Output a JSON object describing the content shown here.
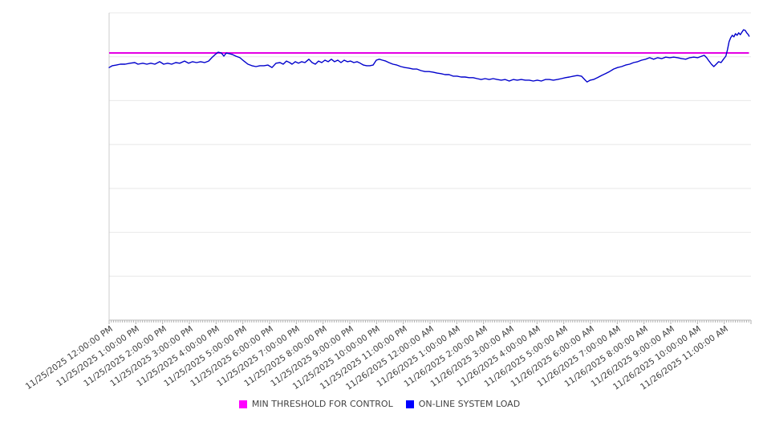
{
  "chart_data": {
    "type": "line",
    "title": "",
    "x_axis_label": "",
    "y_axis_label": "",
    "y_axis_ticks": "unlabeled",
    "y_range": [
      0,
      100
    ],
    "y_unit": "normalized (0-100 of plot height, no visible axis labels)",
    "x_range_hours": [
      0,
      24
    ],
    "grid_divisions": 7,
    "grid_on": true,
    "legend_position": "bottom-center",
    "x_labels": [
      "11/25/2025 12:00:00 PM",
      "11/25/2025 1:00:00 PM",
      "11/25/2025 2:00:00 PM",
      "11/25/2025 3:00:00 PM",
      "11/25/2025 4:00:00 PM",
      "11/25/2025 5:00:00 PM",
      "11/25/2025 6:00:00 PM",
      "11/25/2025 7:00:00 PM",
      "11/25/2025 8:00:00 PM",
      "11/25/2025 9:00:00 PM",
      "11/25/2025 10:00:00 PM",
      "11/25/2025 11:00:00 PM",
      "11/26/2025 12:00:00 AM",
      "11/26/2025 1:00:00 AM",
      "11/26/2025 2:00:00 AM",
      "11/26/2025 3:00:00 AM",
      "11/26/2025 4:00:00 AM",
      "11/26/2025 5:00:00 AM",
      "11/26/2025 6:00:00 AM",
      "11/26/2025 7:00:00 AM",
      "11/26/2025 8:00:00 AM",
      "11/26/2025 9:00:00 AM",
      "11/26/2025 10:00:00 AM",
      "11/26/2025 11:00:00 AM"
    ],
    "series": [
      {
        "name": "MIN THRESHOLD FOR CONTROL",
        "type": "threshold",
        "line_color": "#E400E4",
        "legend_color": "#FF00FF",
        "value": 86.9
      },
      {
        "name": "ON-LINE SYSTEM LOAD",
        "type": "line",
        "line_color": "#0000CC",
        "legend_color": "#0000FF",
        "points": [
          [
            0.0,
            82.2
          ],
          [
            0.12,
            82.8
          ],
          [
            0.27,
            83.0
          ],
          [
            0.42,
            83.3
          ],
          [
            0.6,
            83.3
          ],
          [
            0.78,
            83.6
          ],
          [
            0.96,
            83.8
          ],
          [
            1.08,
            83.3
          ],
          [
            1.26,
            83.6
          ],
          [
            1.41,
            83.3
          ],
          [
            1.56,
            83.6
          ],
          [
            1.71,
            83.3
          ],
          [
            1.89,
            84.1
          ],
          [
            2.04,
            83.3
          ],
          [
            2.19,
            83.6
          ],
          [
            2.34,
            83.3
          ],
          [
            2.49,
            83.8
          ],
          [
            2.64,
            83.6
          ],
          [
            2.82,
            84.3
          ],
          [
            2.97,
            83.6
          ],
          [
            3.12,
            84.1
          ],
          [
            3.27,
            83.8
          ],
          [
            3.42,
            84.1
          ],
          [
            3.57,
            83.8
          ],
          [
            3.72,
            84.3
          ],
          [
            3.84,
            85.4
          ],
          [
            3.96,
            86.4
          ],
          [
            4.08,
            87.2
          ],
          [
            4.2,
            86.9
          ],
          [
            4.29,
            85.9
          ],
          [
            4.38,
            86.9
          ],
          [
            4.5,
            86.7
          ],
          [
            4.62,
            86.4
          ],
          [
            4.74,
            85.9
          ],
          [
            4.89,
            85.4
          ],
          [
            5.04,
            84.3
          ],
          [
            5.19,
            83.3
          ],
          [
            5.34,
            82.8
          ],
          [
            5.49,
            82.5
          ],
          [
            5.64,
            82.8
          ],
          [
            5.79,
            82.8
          ],
          [
            5.94,
            83.0
          ],
          [
            6.09,
            82.2
          ],
          [
            6.24,
            83.6
          ],
          [
            6.39,
            83.8
          ],
          [
            6.51,
            83.3
          ],
          [
            6.63,
            84.3
          ],
          [
            6.75,
            83.8
          ],
          [
            6.84,
            83.3
          ],
          [
            6.96,
            84.1
          ],
          [
            7.08,
            83.6
          ],
          [
            7.2,
            84.1
          ],
          [
            7.32,
            83.8
          ],
          [
            7.47,
            84.9
          ],
          [
            7.59,
            83.8
          ],
          [
            7.71,
            83.3
          ],
          [
            7.83,
            84.3
          ],
          [
            7.95,
            83.8
          ],
          [
            8.07,
            84.6
          ],
          [
            8.19,
            84.1
          ],
          [
            8.31,
            84.9
          ],
          [
            8.43,
            84.1
          ],
          [
            8.55,
            84.6
          ],
          [
            8.67,
            83.8
          ],
          [
            8.79,
            84.6
          ],
          [
            8.91,
            84.1
          ],
          [
            9.03,
            84.3
          ],
          [
            9.15,
            83.8
          ],
          [
            9.27,
            84.1
          ],
          [
            9.39,
            83.6
          ],
          [
            9.51,
            83.0
          ],
          [
            9.63,
            82.8
          ],
          [
            9.75,
            82.8
          ],
          [
            9.87,
            83.0
          ],
          [
            9.99,
            84.6
          ],
          [
            10.1,
            84.9
          ],
          [
            10.22,
            84.6
          ],
          [
            10.34,
            84.3
          ],
          [
            10.46,
            83.8
          ],
          [
            10.61,
            83.3
          ],
          [
            10.76,
            83.0
          ],
          [
            10.91,
            82.5
          ],
          [
            11.06,
            82.2
          ],
          [
            11.21,
            82.0
          ],
          [
            11.36,
            81.7
          ],
          [
            11.51,
            81.7
          ],
          [
            11.66,
            81.2
          ],
          [
            11.81,
            80.9
          ],
          [
            11.96,
            80.9
          ],
          [
            12.11,
            80.7
          ],
          [
            12.26,
            80.4
          ],
          [
            12.41,
            80.2
          ],
          [
            12.56,
            79.9
          ],
          [
            12.71,
            79.9
          ],
          [
            12.86,
            79.4
          ],
          [
            13.01,
            79.4
          ],
          [
            13.16,
            79.1
          ],
          [
            13.31,
            79.1
          ],
          [
            13.46,
            78.9
          ],
          [
            13.61,
            78.9
          ],
          [
            13.76,
            78.6
          ],
          [
            13.91,
            78.3
          ],
          [
            14.06,
            78.6
          ],
          [
            14.21,
            78.3
          ],
          [
            14.36,
            78.6
          ],
          [
            14.51,
            78.3
          ],
          [
            14.66,
            78.1
          ],
          [
            14.81,
            78.3
          ],
          [
            14.96,
            77.8
          ],
          [
            15.11,
            78.3
          ],
          [
            15.26,
            78.1
          ],
          [
            15.41,
            78.3
          ],
          [
            15.56,
            78.1
          ],
          [
            15.71,
            78.1
          ],
          [
            15.86,
            77.8
          ],
          [
            16.01,
            78.1
          ],
          [
            16.16,
            77.8
          ],
          [
            16.31,
            78.3
          ],
          [
            16.46,
            78.3
          ],
          [
            16.61,
            78.1
          ],
          [
            16.76,
            78.3
          ],
          [
            16.91,
            78.6
          ],
          [
            17.06,
            78.9
          ],
          [
            17.21,
            79.1
          ],
          [
            17.36,
            79.4
          ],
          [
            17.51,
            79.6
          ],
          [
            17.66,
            79.4
          ],
          [
            17.78,
            78.3
          ],
          [
            17.87,
            77.5
          ],
          [
            17.99,
            78.1
          ],
          [
            18.11,
            78.3
          ],
          [
            18.26,
            78.9
          ],
          [
            18.41,
            79.6
          ],
          [
            18.56,
            80.2
          ],
          [
            18.71,
            80.9
          ],
          [
            18.86,
            81.7
          ],
          [
            19.01,
            82.2
          ],
          [
            19.16,
            82.5
          ],
          [
            19.31,
            83.0
          ],
          [
            19.46,
            83.3
          ],
          [
            19.61,
            83.8
          ],
          [
            19.76,
            84.1
          ],
          [
            19.91,
            84.6
          ],
          [
            20.06,
            84.9
          ],
          [
            20.21,
            85.4
          ],
          [
            20.36,
            84.9
          ],
          [
            20.51,
            85.4
          ],
          [
            20.66,
            85.1
          ],
          [
            20.81,
            85.6
          ],
          [
            20.96,
            85.4
          ],
          [
            21.11,
            85.6
          ],
          [
            21.26,
            85.4
          ],
          [
            21.41,
            85.1
          ],
          [
            21.56,
            84.9
          ],
          [
            21.71,
            85.4
          ],
          [
            21.86,
            85.6
          ],
          [
            22.01,
            85.4
          ],
          [
            22.16,
            85.9
          ],
          [
            22.25,
            86.2
          ],
          [
            22.34,
            85.4
          ],
          [
            22.43,
            84.3
          ],
          [
            22.52,
            83.3
          ],
          [
            22.61,
            82.5
          ],
          [
            22.7,
            83.3
          ],
          [
            22.79,
            84.1
          ],
          [
            22.88,
            83.8
          ],
          [
            22.97,
            84.9
          ],
          [
            23.06,
            85.9
          ],
          [
            23.12,
            88.0
          ],
          [
            23.18,
            90.6
          ],
          [
            23.24,
            91.9
          ],
          [
            23.3,
            92.7
          ],
          [
            23.36,
            92.2
          ],
          [
            23.42,
            93.2
          ],
          [
            23.48,
            92.7
          ],
          [
            23.54,
            93.5
          ],
          [
            23.6,
            92.9
          ],
          [
            23.66,
            93.7
          ],
          [
            23.72,
            94.5
          ],
          [
            23.78,
            94.3
          ],
          [
            23.84,
            93.5
          ],
          [
            23.9,
            92.9
          ],
          [
            23.93,
            92.4
          ]
        ]
      }
    ],
    "colors": {
      "grid": "#E8E8E8",
      "axis": "#BBBBBB",
      "tick": "#B0B0B0",
      "label_text": "#3d3d3d",
      "background": "#FFFFFF"
    }
  }
}
